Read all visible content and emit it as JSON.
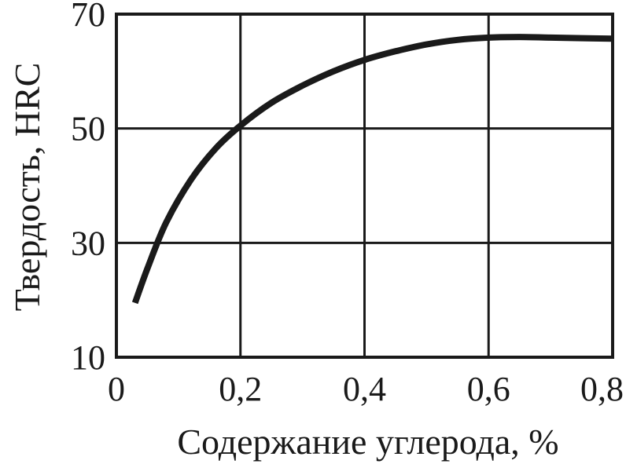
{
  "chart_data": {
    "type": "line",
    "title": "",
    "xlabel": "Содержание углерода, %",
    "ylabel": "Твердость, HRC",
    "xlim": [
      0,
      0.8
    ],
    "ylim": [
      10,
      70
    ],
    "xticks": [
      0,
      0.2,
      0.4,
      0.6,
      0.8
    ],
    "xtick_labels": [
      "0",
      "0,2",
      "0,4",
      "0,6",
      "0,8"
    ],
    "yticks": [
      10,
      30,
      50,
      70
    ],
    "ytick_labels": [
      "10",
      "30",
      "50",
      "70"
    ],
    "grid": true,
    "legend": "none",
    "line_color": "#1a1a1a",
    "series": [
      {
        "x": [
          0.03,
          0.05,
          0.08,
          0.12,
          0.16,
          0.2,
          0.25,
          0.3,
          0.35,
          0.4,
          0.45,
          0.5,
          0.55,
          0.6,
          0.65,
          0.7,
          0.75,
          0.8
        ],
        "y": [
          19.5,
          25.5,
          33.5,
          41,
          46.5,
          50.5,
          54.5,
          57.5,
          60,
          62,
          63.5,
          64.7,
          65.5,
          65.9,
          66,
          65.9,
          65.8,
          65.7
        ]
      }
    ]
  }
}
